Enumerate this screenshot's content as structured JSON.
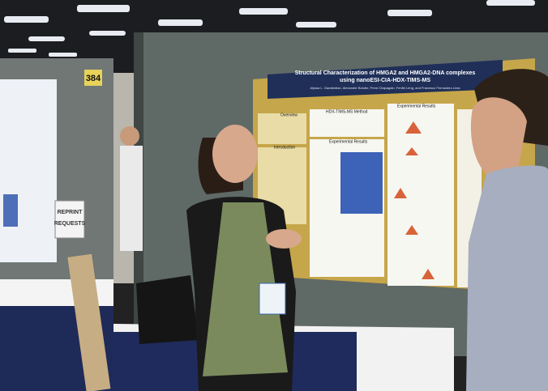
{
  "scene": {
    "booth_number": "384",
    "sign": [
      "REPRINT",
      "REQUESTS"
    ],
    "poster": {
      "title": [
        "Structural Characterization of HMGA2 and HMGA2-DNA complexes",
        "using nanoESI-CIA-HDX-TIMS-MS"
      ],
      "authors": "Alyssa L. Garabedian, Alexander Bolufer, Prem Chapagain, Fenfei Leng, and Francisco Fernandez-Lima",
      "sections": [
        "Overview",
        "Introduction",
        "HDX-TIMS-MS Method",
        "Experimental Results",
        "Experimental Results"
      ]
    }
  }
}
